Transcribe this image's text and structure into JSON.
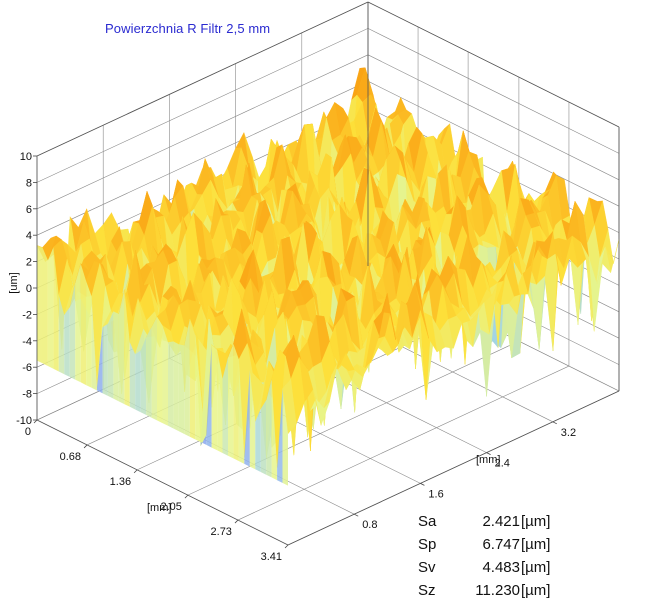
{
  "chart_data": {
    "type": "surface",
    "title": "Powierzchnia R Filtr 2,5 mm",
    "x_axis": {
      "label": "[mm]",
      "ticks": [
        "0",
        "0.68",
        "1.36",
        "2.05",
        "2.73",
        "3.41"
      ],
      "range": [
        0,
        3.41
      ]
    },
    "y_axis": {
      "label": "[mm]",
      "ticks": [
        "0.8",
        "1.6",
        "2.4",
        "3.2"
      ],
      "range": [
        0,
        4.0
      ]
    },
    "z_axis": {
      "label": "[um]",
      "ticks": [
        "10",
        "8",
        "6",
        "4",
        "2",
        "0",
        "-2",
        "-4",
        "-6",
        "-8",
        "-10"
      ],
      "range": [
        -10,
        10
      ]
    },
    "surface": {
      "typical_peak_um": 4.5,
      "typical_valley_um": -4.5,
      "max_um": 6.747,
      "min_um": -4.483
    },
    "colormap": [
      "#7f8ff0",
      "#9fd2e8",
      "#e8f58a",
      "#fde03a",
      "#fbb01c",
      "#f68d06"
    ],
    "grid": true
  },
  "stats": [
    {
      "name": "Sa",
      "value": "2.421",
      "unit": "[µm]"
    },
    {
      "name": "Sp",
      "value": "6.747",
      "unit": "[µm]"
    },
    {
      "name": "Sv",
      "value": "4.483",
      "unit": "[µm]"
    },
    {
      "name": "Sz",
      "value": "11.230",
      "unit": "[µm]"
    }
  ]
}
